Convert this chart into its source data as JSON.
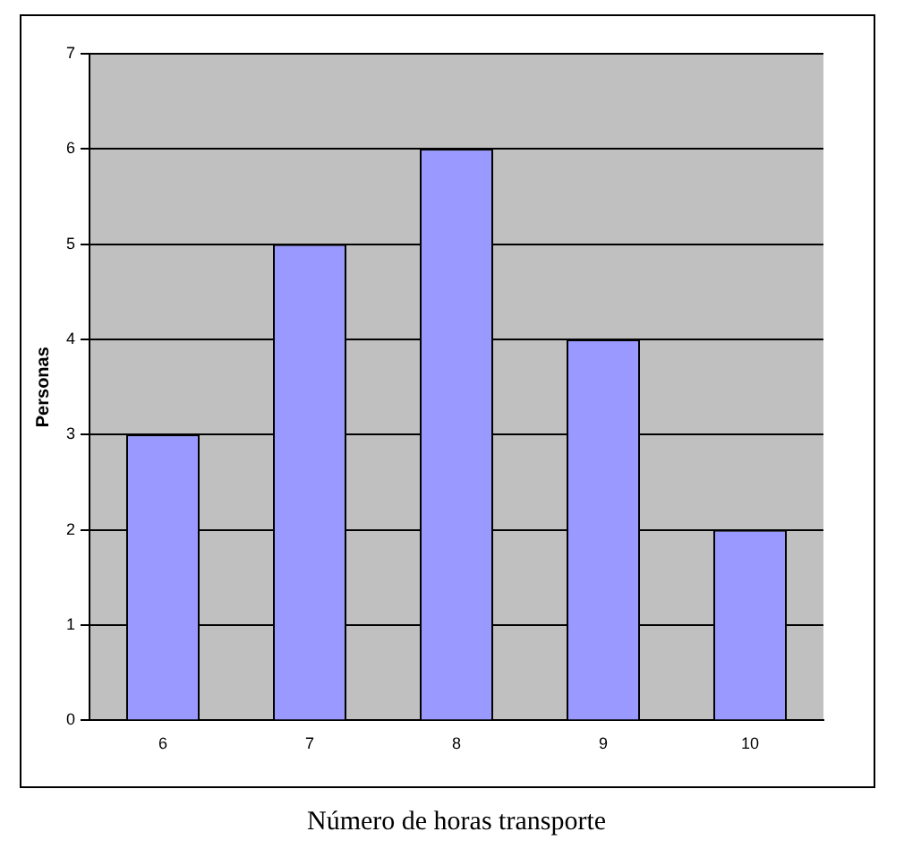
{
  "chart_data": {
    "type": "bar",
    "xlabel": "Número de horas transporte",
    "ylabel": "Personas",
    "categories": [
      "6",
      "7",
      "8",
      "9",
      "10"
    ],
    "values": [
      3,
      5,
      6,
      4,
      2
    ],
    "color": "#9999ff",
    "ylim": [
      0,
      7
    ],
    "yticks": [
      0,
      1,
      2,
      3,
      4,
      5,
      6,
      7
    ],
    "grid": "y",
    "legend": false
  }
}
